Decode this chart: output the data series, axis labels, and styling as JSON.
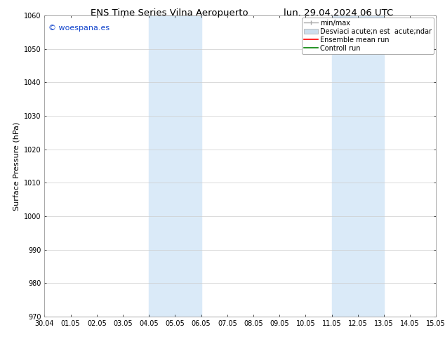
{
  "title_left": "ENS Time Series Vilna Aeropuerto",
  "title_right": "lun. 29.04.2024 06 UTC",
  "ylabel": "Surface Pressure (hPa)",
  "ylim": [
    970,
    1060
  ],
  "yticks": [
    970,
    980,
    990,
    1000,
    1010,
    1020,
    1030,
    1040,
    1050,
    1060
  ],
  "xtick_labels": [
    "30.04",
    "01.05",
    "02.05",
    "03.05",
    "04.05",
    "05.05",
    "06.05",
    "07.05",
    "08.05",
    "09.05",
    "10.05",
    "11.05",
    "12.05",
    "13.05",
    "14.05",
    "15.05"
  ],
  "shaded_regions": [
    {
      "xstart": 4.0,
      "xend": 6.0,
      "color": "#daeaf8"
    },
    {
      "xstart": 11.0,
      "xend": 13.0,
      "color": "#daeaf8"
    }
  ],
  "watermark_text": "© woespana.es",
  "watermark_color": "#1144cc",
  "bg_color": "#ffffff",
  "grid_color": "#cccccc",
  "title_fontsize": 9.5,
  "tick_fontsize": 7,
  "ylabel_fontsize": 8,
  "watermark_fontsize": 8,
  "legend_fontsize": 7
}
